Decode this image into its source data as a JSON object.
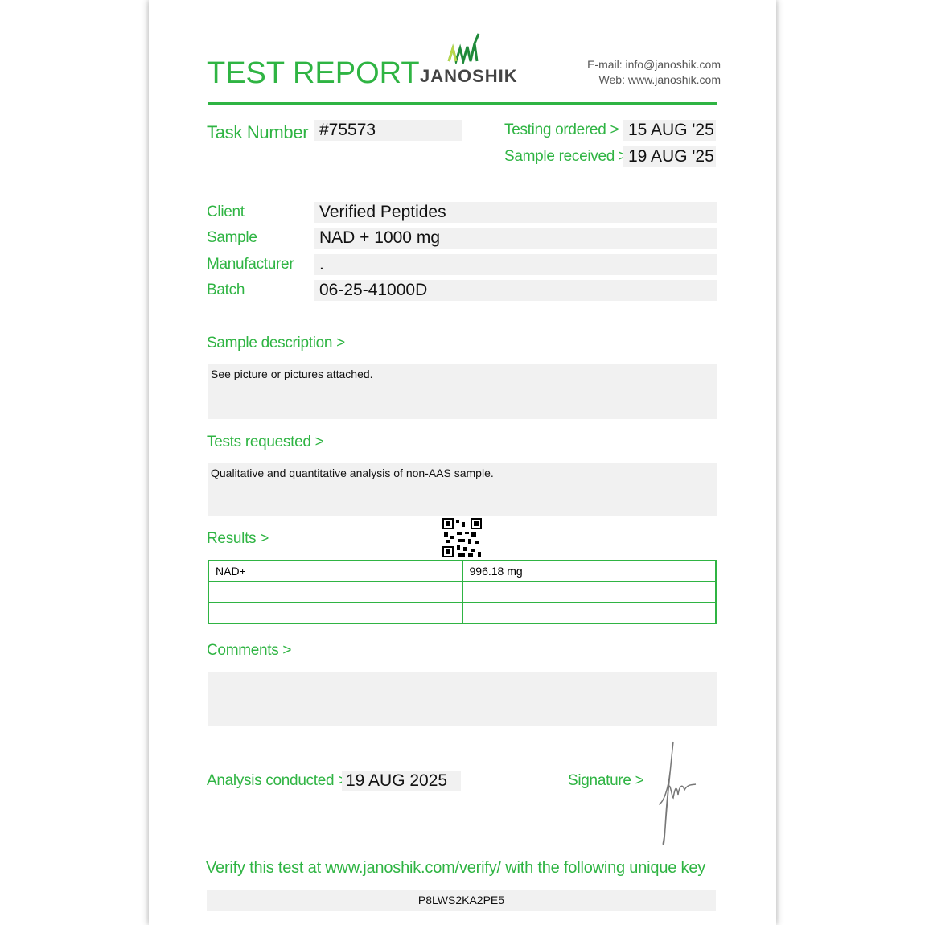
{
  "header": {
    "title": "TEST REPORT",
    "logo_text": "JANOSHIK",
    "email": "E-mail: info@janoshik.com",
    "web": "Web: www.janoshik.com"
  },
  "task": {
    "label": "Task Number",
    "value": "#75573"
  },
  "dates": {
    "ordered_label": "Testing ordered  >",
    "ordered": "15 AUG '25",
    "received_label": "Sample received >",
    "received": "19 AUG '25"
  },
  "fields": [
    {
      "label": "Client",
      "value": "Verified Peptides"
    },
    {
      "label": "Sample",
      "value": "NAD + 1000 mg"
    },
    {
      "label": "Manufacturer",
      "value": "."
    },
    {
      "label": "Batch",
      "value": "06-25-41000D"
    }
  ],
  "description": {
    "label": "Sample description >",
    "text": "See picture or pictures attached."
  },
  "tests": {
    "label": "Tests requested >",
    "text": "Qualitative and quantitative analysis of non-AAS sample."
  },
  "results": {
    "label": "Results >",
    "rows": [
      [
        "NAD+",
        "996.18 mg"
      ],
      [
        "",
        ""
      ],
      [
        "",
        ""
      ]
    ]
  },
  "comments": {
    "label": "Comments >",
    "text": ""
  },
  "analysis": {
    "label": "Analysis conducted >",
    "date": "19 AUG 2025"
  },
  "signature": {
    "label": "Signature >"
  },
  "verify": {
    "text": "Verify this test at www.janoshik.com/verify/ with the following unique key",
    "key": "P8LWS2KA2PE5"
  },
  "colors": {
    "accent": "#2fb443"
  }
}
